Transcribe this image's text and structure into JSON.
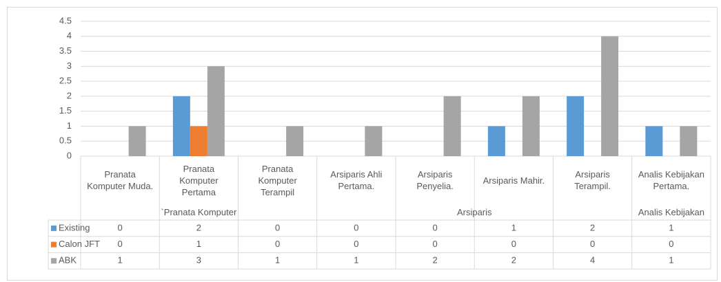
{
  "chart_data": {
    "type": "bar",
    "categories": [
      "Pranata Komputer Muda.",
      "Pranata Komputer Pertama",
      "Pranata Komputer Terampil",
      "Arsiparis Ahli Pertama.",
      "Arsiparis Penyelia.",
      "Arsiparis Mahir.",
      "Arsiparis Terampil.",
      "Analis Kebijakan Pertama."
    ],
    "groups": [
      {
        "name": "`Pranata Komputer",
        "members": [
          "Pranata Komputer Muda.",
          "Pranata Komputer Pertama",
          "Pranata Komputer Terampil"
        ]
      },
      {
        "name": "Arsiparis",
        "members": [
          "Arsiparis Ahli Pertama.",
          "Arsiparis Penyelia.",
          "Arsiparis Mahir.",
          "Arsiparis Terampil."
        ]
      },
      {
        "name": "Analis Kebijakan",
        "members": [
          "Analis Kebijakan Pertama."
        ]
      }
    ],
    "series": [
      {
        "name": "Existing",
        "color": "#5b9bd5",
        "values": [
          0,
          2,
          0,
          0,
          0,
          1,
          2,
          1
        ]
      },
      {
        "name": "Calon JFT",
        "color": "#ed7d31",
        "values": [
          0,
          1,
          0,
          0,
          0,
          0,
          0,
          0
        ]
      },
      {
        "name": "ABK",
        "color": "#a5a5a5",
        "values": [
          1,
          3,
          1,
          1,
          2,
          2,
          4,
          1
        ]
      }
    ],
    "ylim": [
      0,
      4.5
    ],
    "yticks": [
      0,
      0.5,
      1,
      1.5,
      2,
      2.5,
      3,
      3.5,
      4,
      4.5
    ],
    "grid": true
  }
}
